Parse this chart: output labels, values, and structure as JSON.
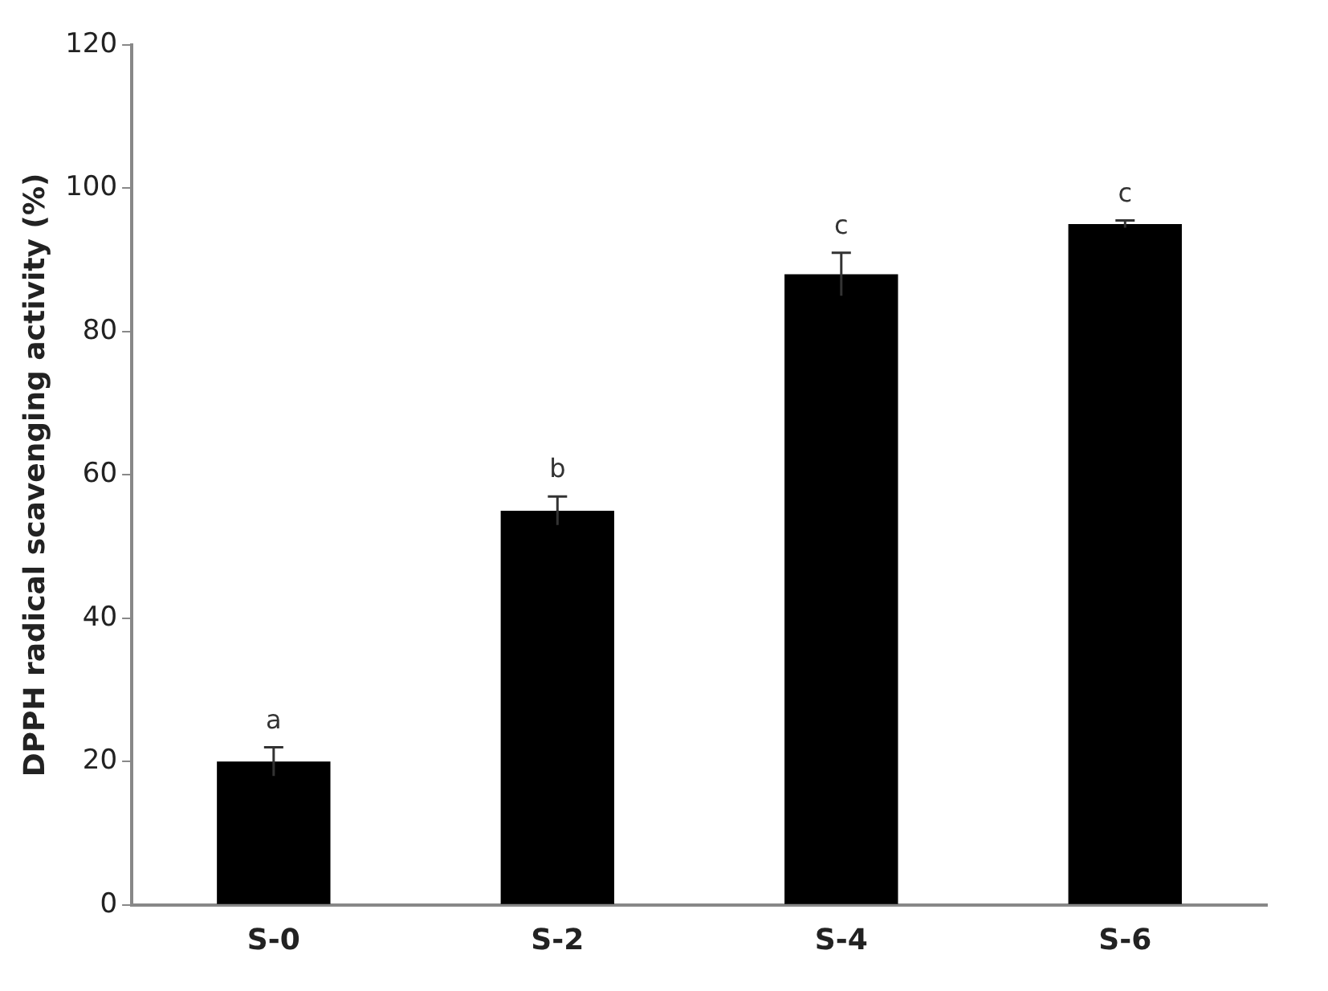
{
  "chart_data": {
    "type": "bar",
    "ylabel": "DPPH radical scavenging activity (%)",
    "categories": [
      "S-0",
      "S-2",
      "S-4",
      "S-6"
    ],
    "values": [
      20,
      55,
      88,
      95
    ],
    "errors": [
      2,
      2,
      3,
      0.5
    ],
    "color": "#000000",
    "ylim": [
      0,
      120
    ],
    "yticks": [
      0,
      20,
      40,
      60,
      80,
      100,
      120
    ],
    "grid": false,
    "legend": false,
    "annotations": [
      {
        "text": "a",
        "x": "S-0",
        "y": 22
      },
      {
        "text": "b",
        "x": "S-2",
        "y": 57
      },
      {
        "text": "c",
        "x": "S-4",
        "y": 91
      },
      {
        "text": "c",
        "x": "S-6",
        "y": 95.5
      }
    ]
  }
}
